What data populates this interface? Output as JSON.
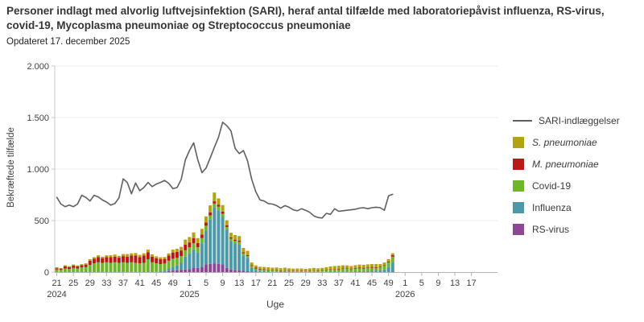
{
  "header": {
    "title": "Personer indlagt med alvorlig luftvejsinfektion (SARI), heraf antal tilfælde med laboratoriepåvist influenza, RS-virus, covid-19, Mycoplasma pneumoniae og Streptococcus pneumoniae",
    "subtitle": "Opdateret 17. december 2025"
  },
  "legend": {
    "items": [
      {
        "label": "SARI-indlæggelser",
        "type": "line",
        "color": "#5f5f5f",
        "italic": false
      },
      {
        "label": "S. pneumoniae",
        "type": "box",
        "color": "#b2a312",
        "italic": true
      },
      {
        "label": "M. pneumoniae",
        "type": "box",
        "color": "#bb1917",
        "italic": true
      },
      {
        "label": "Covid-19",
        "type": "box",
        "color": "#70b62c",
        "italic": false
      },
      {
        "label": "Influenza",
        "type": "box",
        "color": "#4d99a9",
        "italic": false
      },
      {
        "label": "RS-virus",
        "type": "box",
        "color": "#8d4795",
        "italic": false
      }
    ]
  },
  "chart_data": {
    "type": "bar",
    "subtype": "stacked-bars-with-line",
    "title": "Personer indlagt med alvorlig luftvejsinfektion (SARI), heraf antal tilfælde med laboratoriepåvist influenza, RS-virus, covid-19, Mycoplasma pneumoniae og Streptococcus pneumoniae",
    "xlabel": "Uge",
    "ylabel": "Bekræftede tilfælde",
    "ylim": [
      0,
      2000
    ],
    "yticks": [
      "0",
      "500",
      "1.000",
      "1.500",
      "2.000"
    ],
    "ytick_values": [
      0,
      500,
      1000,
      1500,
      2000
    ],
    "grid": "horizontal",
    "legend_position": "right",
    "weeks_start": "2024-W21",
    "weeks_end": "2025-W50",
    "weeks_count": 82,
    "x_axis": {
      "total_slots": 106,
      "tick_every_weeks": 4,
      "tick_labels": [
        "21",
        "25",
        "29",
        "33",
        "37",
        "41",
        "45",
        "49",
        "1",
        "5",
        "9",
        "13",
        "17",
        "21",
        "25",
        "29",
        "33",
        "37",
        "41",
        "45",
        "49",
        "1",
        "5",
        "9",
        "13",
        "17"
      ],
      "year_labels": [
        {
          "text": "2024",
          "slot": 0
        },
        {
          "text": "2025",
          "slot": 32
        },
        {
          "text": "2026",
          "slot": 84
        }
      ]
    },
    "series": [
      {
        "name": "RS-virus",
        "type": "bar",
        "color": "#8d4795",
        "values": [
          0,
          0,
          0,
          0,
          0,
          0,
          0,
          0,
          0,
          0,
          0,
          0,
          0,
          0,
          0,
          0,
          0,
          0,
          0,
          0,
          0,
          0,
          0,
          0,
          0,
          0,
          5,
          10,
          15,
          18,
          20,
          25,
          30,
          45,
          40,
          50,
          75,
          80,
          85,
          80,
          75,
          40,
          25,
          18,
          15,
          12,
          8,
          5,
          3,
          2,
          2,
          0,
          0,
          0,
          0,
          0,
          0,
          0,
          0,
          0,
          0,
          0,
          0,
          0,
          0,
          0,
          0,
          0,
          0,
          0,
          0,
          0,
          0,
          0,
          0,
          0,
          0,
          0,
          0,
          0,
          3,
          5
        ]
      },
      {
        "name": "Influenza",
        "type": "bar",
        "color": "#4d99a9",
        "values": [
          0,
          0,
          0,
          0,
          0,
          0,
          0,
          0,
          0,
          0,
          0,
          0,
          0,
          0,
          0,
          0,
          0,
          0,
          0,
          0,
          0,
          0,
          0,
          0,
          5,
          8,
          10,
          25,
          35,
          45,
          70,
          125,
          155,
          175,
          150,
          230,
          330,
          430,
          545,
          520,
          460,
          370,
          275,
          260,
          255,
          150,
          130,
          40,
          18,
          12,
          10,
          8,
          6,
          5,
          4,
          4,
          3,
          3,
          2,
          2,
          2,
          2,
          2,
          2,
          3,
          3,
          4,
          4,
          5,
          5,
          6,
          6,
          8,
          8,
          10,
          10,
          12,
          12,
          15,
          25,
          45,
          88
        ]
      },
      {
        "name": "Covid-19",
        "type": "bar",
        "color": "#70b62c",
        "values": [
          25,
          22,
          35,
          30,
          40,
          35,
          45,
          48,
          70,
          85,
          95,
          90,
          95,
          90,
          95,
          90,
          95,
          90,
          95,
          90,
          85,
          90,
          125,
          95,
          80,
          70,
          68,
          75,
          80,
          75,
          65,
          62,
          55,
          60,
          52,
          50,
          45,
          40,
          35,
          35,
          32,
          28,
          25,
          25,
          22,
          20,
          18,
          15,
          14,
          12,
          10,
          10,
          10,
          10,
          8,
          10,
          8,
          8,
          8,
          10,
          8,
          10,
          12,
          10,
          12,
          15,
          18,
          20,
          22,
          25,
          25,
          22,
          25,
          28,
          25,
          28,
          30,
          28,
          30,
          35,
          45,
          57
        ]
      },
      {
        "name": "M. pneumoniae",
        "type": "bar",
        "color": "#bb1917",
        "values": [
          12,
          10,
          20,
          18,
          22,
          20,
          22,
          25,
          40,
          45,
          50,
          45,
          50,
          55,
          55,
          50,
          60,
          60,
          65,
          70,
          60,
          70,
          68,
          55,
          50,
          48,
          45,
          50,
          60,
          58,
          55,
          55,
          48,
          50,
          40,
          35,
          30,
          28,
          22,
          20,
          20,
          15,
          12,
          12,
          12,
          10,
          10,
          8,
          8,
          6,
          6,
          5,
          5,
          5,
          4,
          4,
          4,
          3,
          3,
          3,
          3,
          4,
          4,
          4,
          4,
          5,
          5,
          5,
          6,
          6,
          6,
          6,
          6,
          7,
          7,
          7,
          8,
          8,
          8,
          8,
          10,
          15
        ]
      },
      {
        "name": "S. pneumoniae",
        "type": "bar",
        "color": "#b2a312",
        "values": [
          10,
          8,
          12,
          10,
          12,
          10,
          10,
          12,
          15,
          15,
          18,
          15,
          18,
          18,
          20,
          18,
          20,
          25,
          22,
          25,
          22,
          22,
          25,
          22,
          18,
          18,
          18,
          22,
          28,
          30,
          35,
          48,
          52,
          55,
          48,
          55,
          60,
          70,
          85,
          60,
          63,
          50,
          45,
          45,
          46,
          43,
          40,
          25,
          22,
          20,
          22,
          25,
          22,
          25,
          22,
          25,
          22,
          20,
          22,
          20,
          18,
          20,
          22,
          20,
          22,
          25,
          28,
          30,
          28,
          30,
          28,
          25,
          28,
          30,
          28,
          30,
          28,
          30,
          25,
          25,
          22,
          18
        ]
      },
      {
        "name": "SARI-indlæggelser",
        "type": "line",
        "color": "#5f5f5f",
        "values": [
          725,
          660,
          635,
          650,
          635,
          660,
          745,
          725,
          690,
          745,
          730,
          700,
          680,
          650,
          665,
          720,
          905,
          870,
          760,
          865,
          790,
          820,
          870,
          830,
          855,
          870,
          890,
          860,
          810,
          820,
          900,
          1090,
          1180,
          1255,
          1090,
          965,
          1010,
          1110,
          1210,
          1310,
          1455,
          1420,
          1370,
          1200,
          1150,
          1180,
          1080,
          900,
          780,
          700,
          690,
          665,
          660,
          645,
          620,
          645,
          630,
          605,
          595,
          615,
          600,
          580,
          545,
          530,
          525,
          570,
          560,
          615,
          590,
          595,
          600,
          605,
          610,
          620,
          625,
          615,
          625,
          630,
          625,
          600,
          740,
          755
        ]
      }
    ],
    "colors": {
      "grid": "#ededed",
      "axis": "#c9c9c9",
      "bottom_axis": "#b3b3b3",
      "tick_text": "#404040"
    }
  }
}
